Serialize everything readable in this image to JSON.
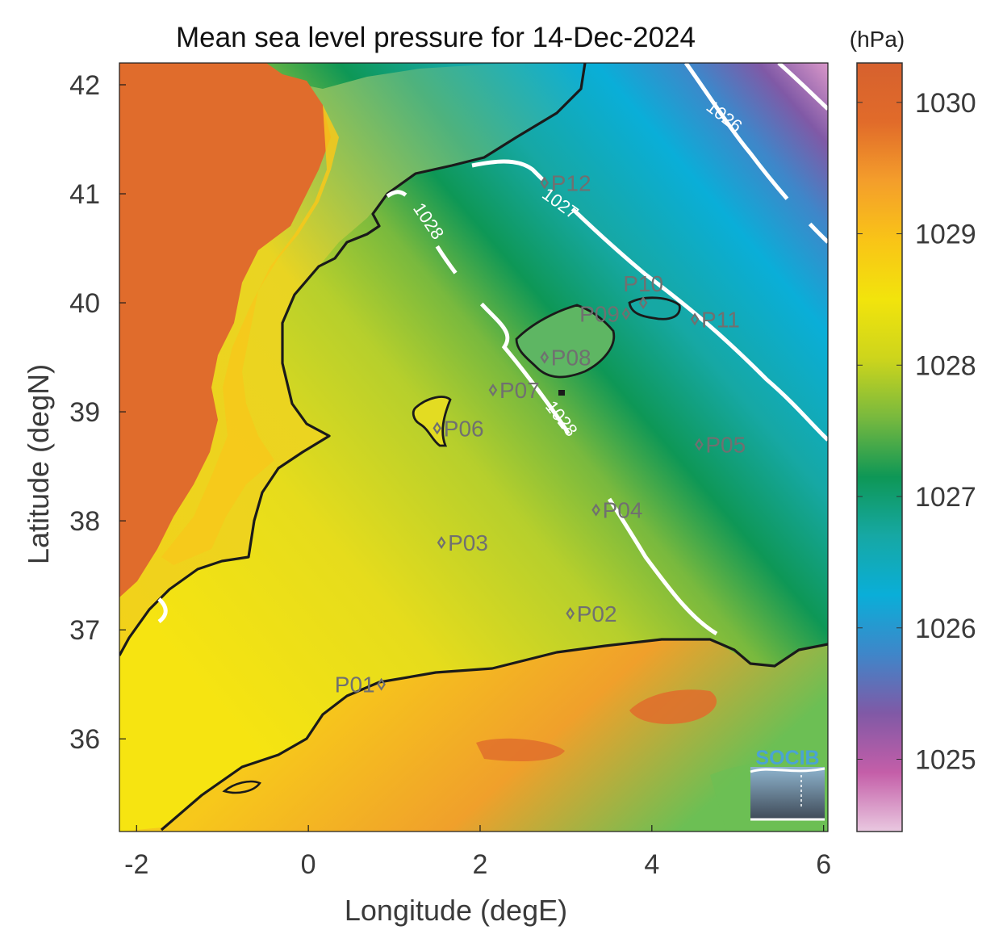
{
  "title": "Mean sea level pressure for 14-Dec-2024",
  "xlabel": "Longitude (degE)",
  "ylabel": "Latitude (degN)",
  "x_ticks": [
    {
      "value": -2,
      "label": "-2"
    },
    {
      "value": 0,
      "label": "0"
    },
    {
      "value": 2,
      "label": "2"
    },
    {
      "value": 4,
      "label": "4"
    },
    {
      "value": 6,
      "label": "6"
    }
  ],
  "y_ticks": [
    {
      "value": 36,
      "label": "36"
    },
    {
      "value": 37,
      "label": "37"
    },
    {
      "value": 38,
      "label": "38"
    },
    {
      "value": 39,
      "label": "39"
    },
    {
      "value": 40,
      "label": "40"
    },
    {
      "value": 41,
      "label": "41"
    },
    {
      "value": 42,
      "label": "42"
    }
  ],
  "xlim": [
    -2.2,
    6.05
  ],
  "ylim": [
    35.15,
    42.2
  ],
  "colorbar": {
    "unit": "(hPa)",
    "range": [
      1024.45,
      1030.3
    ],
    "ticks": [
      {
        "value": 1025,
        "label": "1025"
      },
      {
        "value": 1026,
        "label": "1026"
      },
      {
        "value": 1027,
        "label": "1027"
      },
      {
        "value": 1028,
        "label": "1028"
      },
      {
        "value": 1029,
        "label": "1029"
      },
      {
        "value": 1030,
        "label": "1030"
      }
    ],
    "colors": [
      "#e9c8e0",
      "#c45ea8",
      "#8059a6",
      "#3f86c9",
      "#0aaed8",
      "#16a8a4",
      "#0e9756",
      "#78b93e",
      "#cdd51c",
      "#f2e40c",
      "#f9c417",
      "#f49e2b",
      "#e16b2a",
      "#d6612e"
    ]
  },
  "contours": [
    {
      "label": "1026",
      "value": 1026
    },
    {
      "label": "1027",
      "value": 1027
    },
    {
      "label": "1028",
      "value": 1028
    },
    {
      "label": "1028",
      "value": 1028
    }
  ],
  "stations": [
    {
      "label": "P01",
      "lon": 0.85,
      "lat": 36.5,
      "label_side": "left"
    },
    {
      "label": "P02",
      "lon": 3.05,
      "lat": 37.15,
      "label_side": "right"
    },
    {
      "label": "P03",
      "lon": 1.55,
      "lat": 37.8,
      "label_side": "right"
    },
    {
      "label": "P04",
      "lon": 3.35,
      "lat": 38.1,
      "label_side": "right"
    },
    {
      "label": "P05",
      "lon": 4.55,
      "lat": 38.7,
      "label_side": "right"
    },
    {
      "label": "P06",
      "lon": 1.5,
      "lat": 38.85,
      "label_side": "right"
    },
    {
      "label": "P07",
      "lon": 2.15,
      "lat": 39.2,
      "label_side": "right"
    },
    {
      "label": "P08",
      "lon": 2.75,
      "lat": 39.5,
      "label_side": "right"
    },
    {
      "label": "P09",
      "lon": 3.7,
      "lat": 39.9,
      "label_side": "left"
    },
    {
      "label": "P10",
      "lon": 3.9,
      "lat": 40.0,
      "label_side": "above"
    },
    {
      "label": "P11",
      "lon": 4.5,
      "lat": 39.85,
      "label_side": "right"
    },
    {
      "label": "P12",
      "lon": 2.75,
      "lat": 41.1,
      "label_side": "right"
    }
  ],
  "logo_text": "SOCIB",
  "colors": {
    "land_warm": "#e06c2c",
    "station": "#707070",
    "coast": "#1a1a1a",
    "contour": "#ffffff",
    "axis_text": "#3a3a3a"
  }
}
